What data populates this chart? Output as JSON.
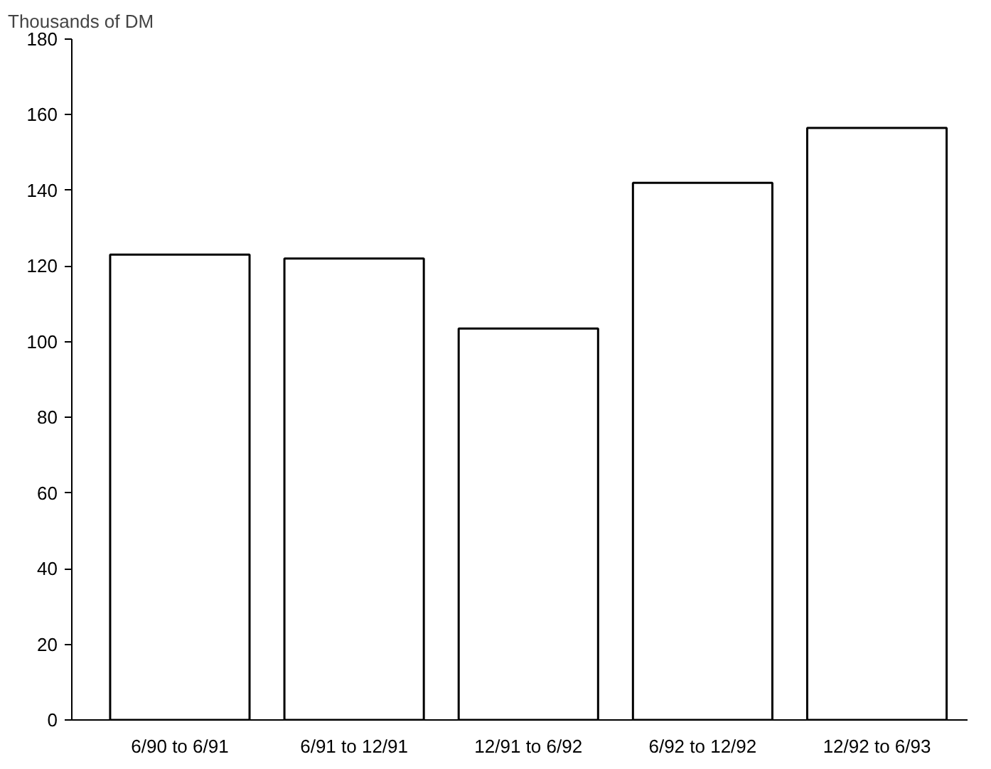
{
  "chart_data": {
    "type": "bar",
    "ylabel": "Thousands of DM",
    "categories": [
      "6/90 to 6/91",
      "6/91 to 12/91",
      "12/91 to 6/92",
      "6/92 to 12/92",
      "12/92 to 6/93"
    ],
    "values": [
      123,
      122,
      103.5,
      142,
      156.5
    ],
    "color": "#ffffff",
    "ylim": [
      0,
      180
    ],
    "yticks": [
      0,
      20,
      40,
      60,
      80,
      100,
      120,
      140,
      160,
      180
    ],
    "grid": false
  }
}
